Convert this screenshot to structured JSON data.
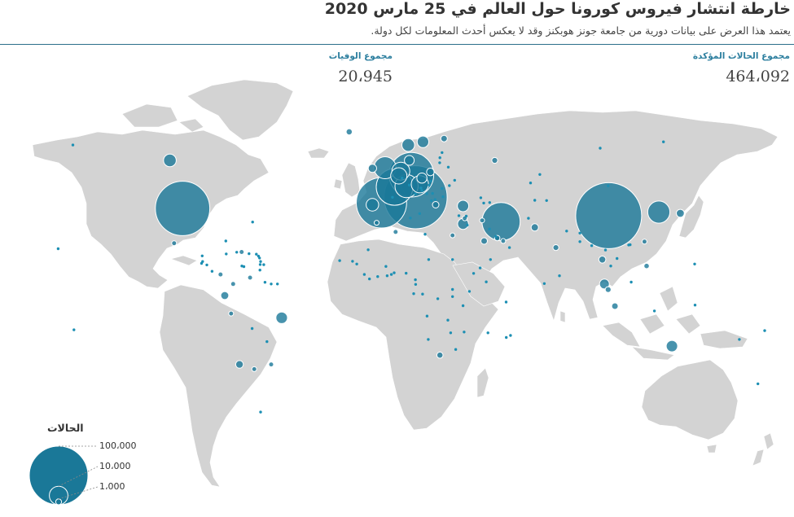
{
  "header": {
    "title": "خارطة انتشار فيروس كورونا حول العالم في 25 مارس 2020",
    "subtitle": "يعتمد هذا العرض على بيانات دورية من جامعة جونز هوبكنز وقد لا يعكس أحدث المعلومات لكل دولة."
  },
  "stats": {
    "confirmed_label": "مجموع الحالات المؤكدة",
    "confirmed_value": "464،092",
    "deaths_label": "مجموع الوفيات",
    "deaths_value": "20،945"
  },
  "legend": {
    "title": "الحالات",
    "levels": [
      {
        "label": "100،000",
        "cases": 100000
      },
      {
        "label": "10،000",
        "cases": 10000
      },
      {
        "label": "1،000",
        "cases": 1000
      }
    ]
  },
  "colors": {
    "land": "#d3d3d3",
    "land_border": "#ffffff",
    "bubble": "#1a7898",
    "bubble_stroke": "#ffffff",
    "small_marker": "#1c8fb3"
  },
  "map_data": {
    "projection": "miller",
    "bubbles": [
      {
        "region": "usa",
        "lon": -98,
        "lat": 38,
        "cases": 55000
      },
      {
        "region": "canada",
        "lon": -104,
        "lat": 56,
        "cases": 3000
      },
      {
        "region": "mexico",
        "lon": -102,
        "lat": 23,
        "cases": 400
      },
      {
        "region": "brazil",
        "lon": -51,
        "lat": -12,
        "cases": 2500
      },
      {
        "region": "chile",
        "lon": -71,
        "lat": -33,
        "cases": 1100
      },
      {
        "region": "ecuador",
        "lon": -78,
        "lat": -1.5,
        "cases": 1200
      },
      {
        "region": "peru",
        "lon": -75,
        "lat": -10,
        "cases": 400
      },
      {
        "region": "colombia",
        "lon": -74,
        "lat": 4,
        "cases": 400
      },
      {
        "region": "venezuela",
        "lon": -66,
        "lat": 7,
        "cases": 100
      },
      {
        "region": "panama",
        "lon": -80,
        "lat": 8.5,
        "cases": 400
      },
      {
        "region": "dominican-republic",
        "lon": -70,
        "lat": 19,
        "cases": 400
      },
      {
        "region": "argentina",
        "lon": -64,
        "lat": -35,
        "cases": 400
      },
      {
        "region": "uruguay",
        "lon": -56,
        "lat": -33,
        "cases": 200
      },
      {
        "region": "iceland",
        "lon": -19,
        "lat": 65,
        "cases": 700
      },
      {
        "region": "norway",
        "lon": 9,
        "lat": 61,
        "cases": 3000
      },
      {
        "region": "sweden",
        "lon": 16,
        "lat": 62,
        "cases": 2500
      },
      {
        "region": "finland",
        "lon": 26,
        "lat": 63,
        "cases": 800
      },
      {
        "region": "united-kingdom",
        "lon": -2,
        "lat": 53.5,
        "cases": 9000
      },
      {
        "region": "ireland",
        "lon": -8,
        "lat": 53.3,
        "cases": 1300
      },
      {
        "region": "germany",
        "lon": 10.5,
        "lat": 51,
        "cases": 37000
      },
      {
        "region": "netherlands",
        "lon": 5.5,
        "lat": 52.3,
        "cases": 6000
      },
      {
        "region": "belgium",
        "lon": 4.5,
        "lat": 50.6,
        "cases": 4900
      },
      {
        "region": "france",
        "lon": 2.5,
        "lat": 46.5,
        "cases": 25000
      },
      {
        "region": "spain",
        "lon": -3.7,
        "lat": 40.3,
        "cases": 47000
      },
      {
        "region": "portugal",
        "lon": -8,
        "lat": 39.5,
        "cases": 2900
      },
      {
        "region": "italy",
        "lon": 12.5,
        "lat": 42.5,
        "cases": 74000
      },
      {
        "region": "switzerland",
        "lon": 8.2,
        "lat": 46.8,
        "cases": 10000
      },
      {
        "region": "austria",
        "lon": 14.5,
        "lat": 47.5,
        "cases": 5500
      },
      {
        "region": "denmark",
        "lon": 9.5,
        "lat": 56,
        "cases": 1800
      },
      {
        "region": "poland",
        "lon": 19.5,
        "lat": 52,
        "cases": 1100
      },
      {
        "region": "czechia",
        "lon": 15.5,
        "lat": 49.8,
        "cases": 1900
      },
      {
        "region": "greece",
        "lon": 22,
        "lat": 39.5,
        "cases": 800
      },
      {
        "region": "turkey",
        "lon": 35,
        "lat": 39,
        "cases": 2400
      },
      {
        "region": "russia",
        "lon": 50,
        "lat": 56,
        "cases": 650
      },
      {
        "region": "israel",
        "lon": 35,
        "lat": 31.5,
        "cases": 2200
      },
      {
        "region": "lebanon",
        "lon": 35.8,
        "lat": 33.9,
        "cases": 330
      },
      {
        "region": "iran",
        "lon": 53,
        "lat": 32.5,
        "cases": 27000
      },
      {
        "region": "iraq",
        "lon": 44,
        "lat": 33,
        "cases": 300
      },
      {
        "region": "saudi-arabia",
        "lon": 45,
        "lat": 24,
        "cases": 800
      },
      {
        "region": "qatar",
        "lon": 51.2,
        "lat": 25.3,
        "cases": 530
      },
      {
        "region": "uae",
        "lon": 54,
        "lat": 24,
        "cases": 250
      },
      {
        "region": "egypt",
        "lon": 30,
        "lat": 26.5,
        "cases": 450
      },
      {
        "region": "algeria",
        "lon": 3,
        "lat": 28,
        "cases": 260
      },
      {
        "region": "morocco",
        "lon": -6,
        "lat": 32,
        "cases": 200
      },
      {
        "region": "south-africa",
        "lon": 24,
        "lat": -29,
        "cases": 700
      },
      {
        "region": "pakistan",
        "lon": 69,
        "lat": 30,
        "cases": 1000
      },
      {
        "region": "india",
        "lon": 79,
        "lat": 21,
        "cases": 650
      },
      {
        "region": "china",
        "lon": 104,
        "lat": 35,
        "cases": 81000
      },
      {
        "region": "south-korea",
        "lon": 127.8,
        "lat": 36.5,
        "cases": 9100
      },
      {
        "region": "japan",
        "lon": 138,
        "lat": 36,
        "cases": 1200
      },
      {
        "region": "taiwan",
        "lon": 121,
        "lat": 23.7,
        "cases": 230
      },
      {
        "region": "thailand",
        "lon": 101,
        "lat": 15.5,
        "cases": 900
      },
      {
        "region": "malaysia",
        "lon": 102,
        "lat": 4,
        "cases": 1800
      },
      {
        "region": "singapore",
        "lon": 103.8,
        "lat": 1.35,
        "cases": 630
      },
      {
        "region": "indonesia",
        "lon": 107,
        "lat": -6.5,
        "cases": 790
      },
      {
        "region": "philippines",
        "lon": 122,
        "lat": 12.5,
        "cases": 550
      },
      {
        "region": "australia",
        "lon": 134,
        "lat": -25,
        "cases": 2400
      }
    ],
    "small_markers": [
      {
        "lon": -150,
        "lat": 61
      },
      {
        "lon": -157,
        "lat": 20.5
      },
      {
        "lon": -64.8,
        "lat": 32.3
      },
      {
        "lon": -77.5,
        "lat": 24
      },
      {
        "lon": -88.5,
        "lat": 14.6
      },
      {
        "lon": -86.5,
        "lat": 13
      },
      {
        "lon": -84,
        "lat": 10
      },
      {
        "lon": -89,
        "lat": 13.7
      },
      {
        "lon": -88.7,
        "lat": 17.2
      },
      {
        "lon": -77.3,
        "lat": 18.1
      },
      {
        "lon": -72.3,
        "lat": 18.9
      },
      {
        "lon": -66.5,
        "lat": 18.2
      },
      {
        "lon": -61.5,
        "lat": 16.2
      },
      {
        "lon": -61,
        "lat": 14.6
      },
      {
        "lon": -61.2,
        "lat": 13.2
      },
      {
        "lon": -59.5,
        "lat": 13.1
      },
      {
        "lon": -61.3,
        "lat": 10.6
      },
      {
        "lon": -62,
        "lat": 17.1
      },
      {
        "lon": -63,
        "lat": 18
      },
      {
        "lon": -69.9,
        "lat": 12.5
      },
      {
        "lon": -68.9,
        "lat": 12.2
      },
      {
        "lon": -58.9,
        "lat": 4.8
      },
      {
        "lon": -56,
        "lat": 4
      },
      {
        "lon": -53,
        "lat": 4
      },
      {
        "lon": -65,
        "lat": -17
      },
      {
        "lon": -58,
        "lat": -23
      },
      {
        "lon": -61,
        "lat": -51.7
      },
      {
        "lon": -23.5,
        "lat": 15
      },
      {
        "lon": -17.4,
        "lat": 14.7
      },
      {
        "lon": -15.4,
        "lat": 13.4
      },
      {
        "lon": -11.8,
        "lat": 8.5
      },
      {
        "lon": -9.4,
        "lat": 6.4
      },
      {
        "lon": -5.5,
        "lat": 7.5
      },
      {
        "lon": -1.6,
        "lat": 12.3
      },
      {
        "lon": -1,
        "lat": 7.9
      },
      {
        "lon": 1,
        "lat": 8.5
      },
      {
        "lon": 2.3,
        "lat": 9.3
      },
      {
        "lon": 8,
        "lat": 9.1
      },
      {
        "lon": 12.4,
        "lat": 6
      },
      {
        "lon": 18.7,
        "lat": 15.5
      },
      {
        "lon": 30,
        "lat": 15.5
      },
      {
        "lon": 40,
        "lat": 9
      },
      {
        "lon": 43.1,
        "lat": 11.6
      },
      {
        "lon": 46,
        "lat": 5
      },
      {
        "lon": 38,
        "lat": 0.5
      },
      {
        "lon": 30,
        "lat": 1.4
      },
      {
        "lon": 30,
        "lat": -2
      },
      {
        "lon": 35,
        "lat": -6.3
      },
      {
        "lon": 15.8,
        "lat": -0.8
      },
      {
        "lon": 11.6,
        "lat": -0.6
      },
      {
        "lon": 23,
        "lat": -3
      },
      {
        "lon": 17.9,
        "lat": -11.2
      },
      {
        "lon": 27.8,
        "lat": -13.1
      },
      {
        "lon": 29.1,
        "lat": -19
      },
      {
        "lon": 18.5,
        "lat": -22
      },
      {
        "lon": 35.5,
        "lat": -18.6
      },
      {
        "lon": 46.8,
        "lat": -19
      },
      {
        "lon": 57.5,
        "lat": -20.2
      },
      {
        "lon": 55.5,
        "lat": -21.1
      },
      {
        "lon": 55.4,
        "lat": -4.6
      },
      {
        "lon": 31.5,
        "lat": -26.5
      },
      {
        "lon": 10,
        "lat": 34
      },
      {
        "lon": 17,
        "lat": 27
      },
      {
        "lon": 12.5,
        "lat": 3.8
      },
      {
        "lon": -10,
        "lat": 20
      },
      {
        "lon": 36.5,
        "lat": 34.8
      },
      {
        "lon": 37,
        "lat": 31
      },
      {
        "lon": 33,
        "lat": 35
      },
      {
        "lon": 47.5,
        "lat": 29.3
      },
      {
        "lon": 50.5,
        "lat": 26
      },
      {
        "lon": 57,
        "lat": 21
      },
      {
        "lon": 48,
        "lat": 15.5
      },
      {
        "lon": 44.8,
        "lat": 40.2
      },
      {
        "lon": 47.6,
        "lat": 40.4
      },
      {
        "lon": 43.4,
        "lat": 42.3
      },
      {
        "lon": 67,
        "lat": 48
      },
      {
        "lon": 74.6,
        "lat": 41.2
      },
      {
        "lon": 69,
        "lat": 41.3
      },
      {
        "lon": 66,
        "lat": 33.9
      },
      {
        "lon": 84.1,
        "lat": 28.4
      },
      {
        "lon": 90.4,
        "lat": 27.5
      },
      {
        "lon": 90.4,
        "lat": 23.7
      },
      {
        "lon": 80.7,
        "lat": 7.9
      },
      {
        "lon": 73.5,
        "lat": 4.2
      },
      {
        "lon": 96,
        "lat": 21.9
      },
      {
        "lon": 102.5,
        "lat": 19.9
      },
      {
        "lon": 108,
        "lat": 16
      },
      {
        "lon": 105,
        "lat": 12.5
      },
      {
        "lon": 114.7,
        "lat": 4.9
      },
      {
        "lon": 125.7,
        "lat": -8.8
      },
      {
        "lon": 103.8,
        "lat": 46.9
      },
      {
        "lon": 114.2,
        "lat": 22.3
      },
      {
        "lon": 113.5,
        "lat": 22.2
      },
      {
        "lon": 144.8,
        "lat": 13.4
      },
      {
        "lon": 166,
        "lat": -22
      },
      {
        "lon": 178,
        "lat": -18
      },
      {
        "lon": -149.5,
        "lat": -17.6
      },
      {
        "lon": 145,
        "lat": -6
      },
      {
        "lon": 174.8,
        "lat": -41
      },
      {
        "lon": 100,
        "lat": 60
      },
      {
        "lon": 130,
        "lat": 62
      },
      {
        "lon": 71.4,
        "lat": 51.1
      },
      {
        "lon": 28,
        "lat": 53.7
      },
      {
        "lon": 31,
        "lat": 49
      },
      {
        "lon": 28.5,
        "lat": 47
      },
      {
        "lon": 25,
        "lat": 45.9
      },
      {
        "lon": 25.5,
        "lat": 42.7
      },
      {
        "lon": 20.5,
        "lat": 44
      },
      {
        "lon": 19,
        "lat": 47.2
      },
      {
        "lon": 19.7,
        "lat": 48.7
      },
      {
        "lon": 15,
        "lat": 46.1
      },
      {
        "lon": 15.5,
        "lat": 45.1
      },
      {
        "lon": 17.8,
        "lat": 43.9
      },
      {
        "lon": 20,
        "lat": 41.1
      },
      {
        "lon": 21.7,
        "lat": 41.6
      },
      {
        "lon": 24,
        "lat": 56.9
      },
      {
        "lon": 25,
        "lat": 58.6
      },
      {
        "lon": 23.9,
        "lat": 55.2
      },
      {
        "lon": 6.1,
        "lat": 49.8
      },
      {
        "lon": 14.4,
        "lat": 35.9
      },
      {
        "lon": 1.5,
        "lat": 42.5
      },
      {
        "lon": 9.5,
        "lat": 47.2
      },
      {
        "lon": 12.4,
        "lat": 43.9
      }
    ]
  }
}
